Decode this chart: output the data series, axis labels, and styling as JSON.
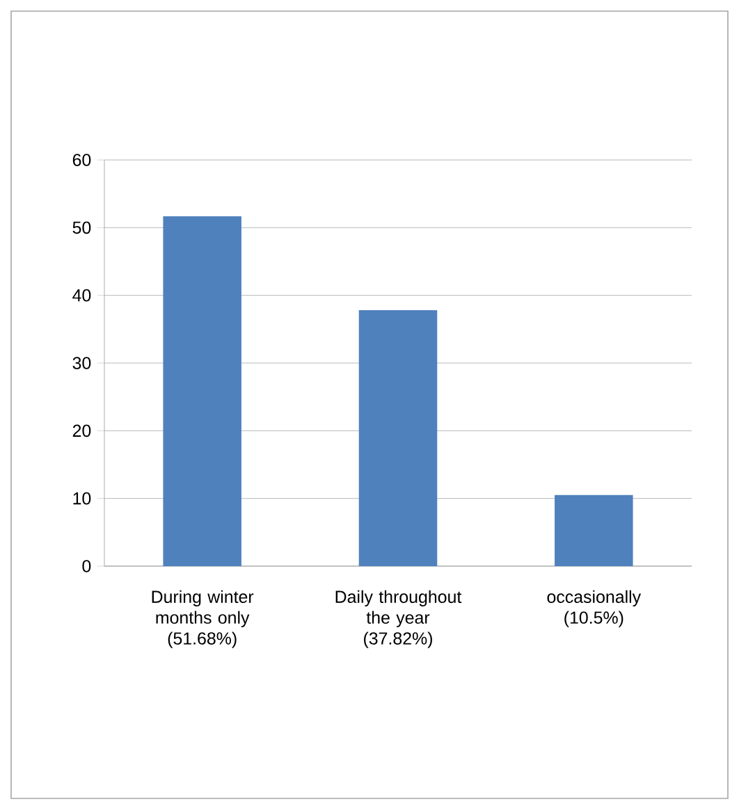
{
  "chart_data": {
    "type": "bar",
    "categories": [
      "During winter months only (51.68%)",
      "Daily throughout the year (37.82%)",
      "occasionally (10.5%)"
    ],
    "values": [
      51.68,
      37.82,
      10.5
    ],
    "color": "#4f81bd",
    "ylim": [
      0,
      60
    ],
    "yticks": [
      0,
      10,
      20,
      30,
      40,
      50,
      60
    ],
    "grid": "y"
  }
}
